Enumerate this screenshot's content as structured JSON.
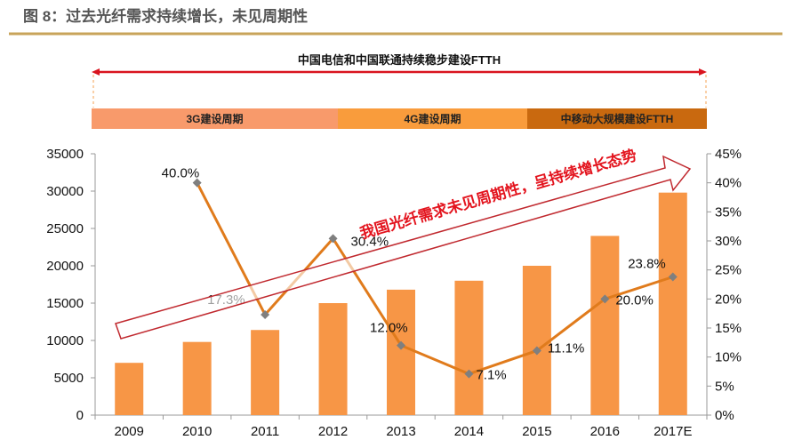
{
  "title": "图 8：过去光纤需求持续增长，未见周期性",
  "colors": {
    "bar": "#f79646",
    "line": "#e07b1c",
    "marker": "#7f7f7f",
    "accent_red": "#d9141e",
    "rule": "#c8a45a"
  },
  "timeline": {
    "top_label": "中国电信和中国联通持续稳步建设FTTH",
    "phases": [
      {
        "label": "3G建设周期",
        "color": "#f89a6b"
      },
      {
        "label": "4G建设周期",
        "color": "#f99c3c"
      },
      {
        "label": "中移动大规模建设FTTH",
        "color": "#c9690f"
      }
    ]
  },
  "annotation": "我国光纤需求未见周期性，呈持续增长态势",
  "chart_data": {
    "type": "bar",
    "categories": [
      "2009",
      "2010",
      "2011",
      "2012",
      "2013",
      "2014",
      "2015",
      "2016",
      "2017E"
    ],
    "series": [
      {
        "type": "bar",
        "axis": "left",
        "values": [
          7000,
          9800,
          11400,
          15000,
          16800,
          18000,
          20000,
          24000,
          29800
        ]
      },
      {
        "type": "line",
        "axis": "right",
        "values": [
          null,
          40.0,
          17.3,
          30.4,
          12.0,
          7.1,
          11.1,
          20.0,
          23.8
        ],
        "labels": [
          "",
          "40.0%",
          "17.3%",
          "30.4%",
          "12.0%",
          "7.1%",
          "11.1%",
          "20.0%",
          "23.8%"
        ]
      }
    ],
    "y_left": {
      "range": [
        0,
        35000
      ],
      "ticks": [
        "0",
        "5000",
        "10000",
        "15000",
        "20000",
        "25000",
        "30000",
        "35000"
      ]
    },
    "y_right": {
      "range": [
        0,
        45
      ],
      "ticks": [
        "0%",
        "5%",
        "10%",
        "15%",
        "20%",
        "25%",
        "30%",
        "35%",
        "40%",
        "45%"
      ]
    },
    "grid": false,
    "legend": "none"
  }
}
